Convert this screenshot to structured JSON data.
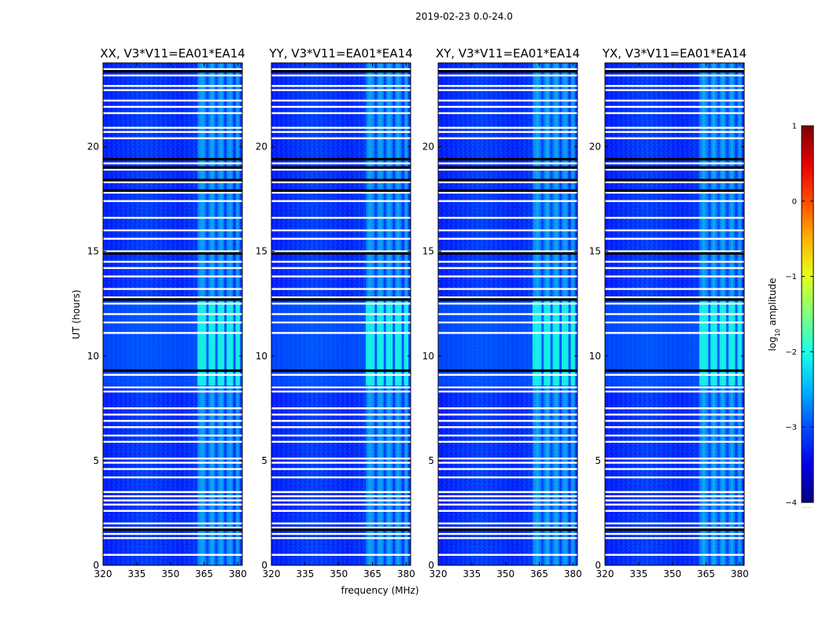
{
  "figure_title": "2019-02-23 0.0-24.0",
  "chart_data": {
    "type": "heatmap",
    "title": "2019-02-23 0.0-24.0",
    "xlabel": "frequency (MHz)",
    "ylabel": "UT (hours)",
    "xlim": [
      320,
      382
    ],
    "ylim": [
      0,
      24
    ],
    "x_ticks": [
      "320",
      "335",
      "350",
      "365",
      "380"
    ],
    "y_ticks": [
      "0",
      "5",
      "10",
      "15",
      "20"
    ],
    "colorbar": {
      "label": "log10 amplitude",
      "label_base": "log",
      "label_sub": "10",
      "label_rest": " amplitude",
      "range": [
        -4,
        1
      ],
      "ticks": [
        "1",
        "0",
        "−1",
        "−2",
        "−3",
        "−4"
      ],
      "footnote": "·····"
    },
    "colormap": "jet",
    "background_log_amplitude": -3.1,
    "bright_bands_mhz": [
      [
        362,
        366
      ],
      [
        367,
        370
      ],
      [
        371,
        374
      ],
      [
        375,
        378
      ],
      [
        379,
        381
      ]
    ],
    "bright_band_log_amplitude": -2.0,
    "strong_rfi_hours": [
      [
        8.6,
        12.6
      ]
    ],
    "blanked_rows_hours": [
      0.5,
      1.3,
      1.5,
      1.8,
      2.0,
      2.6,
      2.9,
      3.1,
      3.3,
      3.5,
      4.2,
      4.6,
      4.9,
      5.1,
      5.9,
      6.2,
      6.6,
      6.9,
      7.2,
      7.5,
      8.3,
      8.5,
      9.1,
      11.1,
      11.6,
      12.0,
      12.5,
      12.8,
      13.2,
      13.8,
      14.2,
      14.5,
      15.0,
      15.6,
      16.0,
      16.6,
      17.4,
      17.8,
      18.3,
      18.9,
      19.2,
      20.4,
      20.7,
      20.9,
      21.6,
      21.9,
      22.2,
      22.7,
      22.9,
      23.4,
      23.7
    ],
    "flagged_rows_hours": [
      1.7,
      9.3,
      12.7,
      14.9,
      17.9,
      18.4,
      19.0,
      19.4,
      23.6
    ],
    "panels": [
      {
        "name": "XX",
        "title": "XX, V3*V11=EA01*EA14"
      },
      {
        "name": "YY",
        "title": "YY, V3*V11=EA01*EA14"
      },
      {
        "name": "XY",
        "title": "XY, V3*V11=EA01*EA14"
      },
      {
        "name": "YX",
        "title": "YX, V3*V11=EA01*EA14"
      }
    ]
  }
}
